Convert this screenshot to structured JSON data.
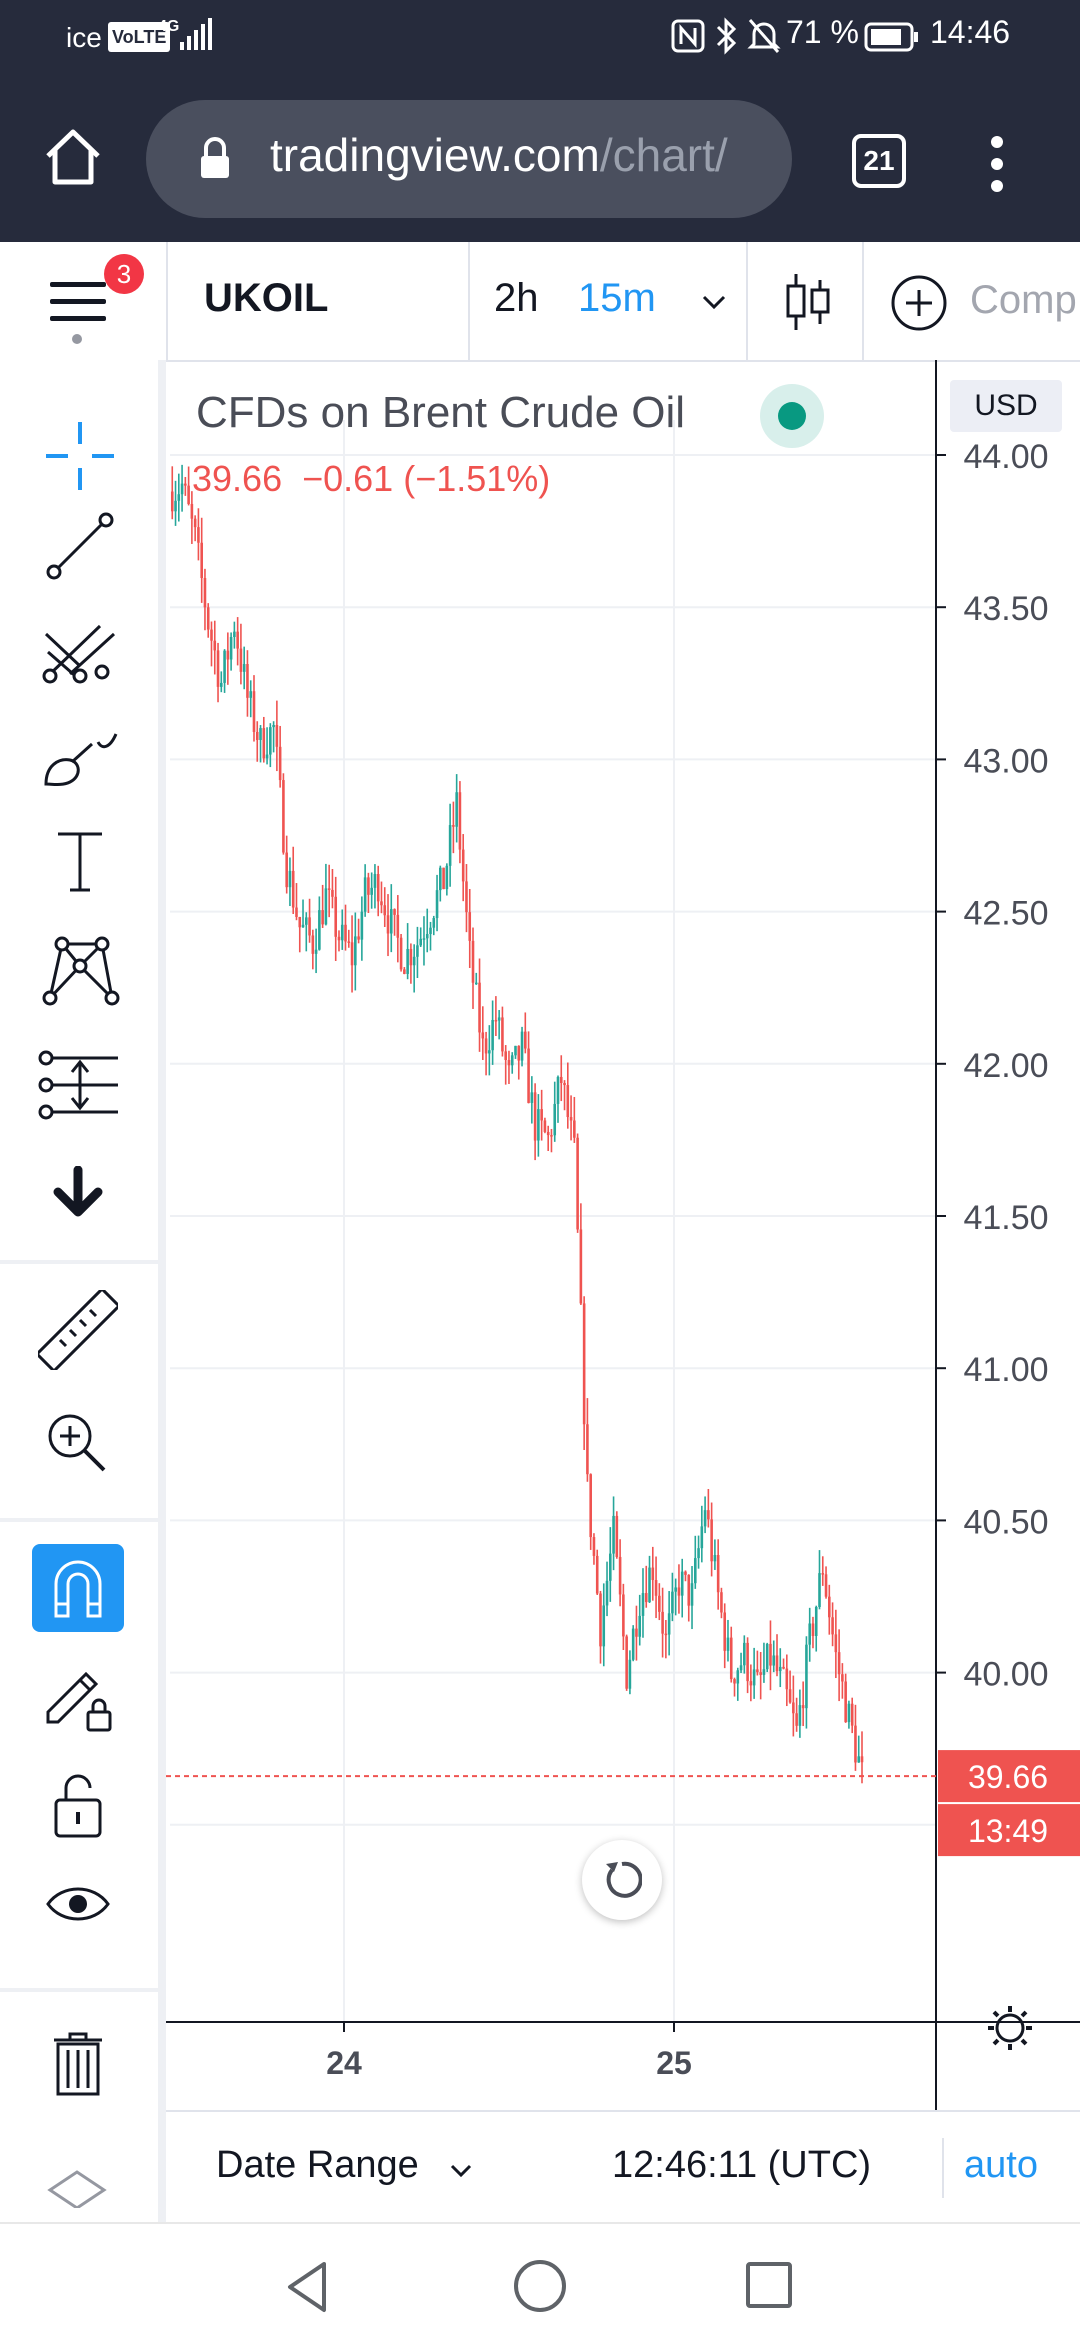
{
  "status_bar": {
    "carrier": "ice",
    "volte": "VoLTE",
    "network": "4G",
    "battery": "71 %",
    "time": "14:46"
  },
  "browser": {
    "url_host": "tradingview.com",
    "url_path": "/chart/",
    "tab_count": "21",
    "icons": [
      "home-icon",
      "lock-icon",
      "tabs-icon",
      "menu-dots-icon"
    ]
  },
  "toolbar": {
    "notification_count": "3",
    "symbol": "UKOIL",
    "range": "2h",
    "interval": "15m",
    "compare_label": "Comp"
  },
  "legend": {
    "title": "CFDs on Brent Crude Oil",
    "price": "39.66",
    "change": "−0.61 (−1.51%)",
    "status_color": "#089981"
  },
  "price_axis": {
    "currency": "USD",
    "ticks": [
      "44.00",
      "43.50",
      "43.00",
      "42.50",
      "42.00",
      "41.50",
      "41.00",
      "40.50",
      "40.00"
    ],
    "current_price_label": "39.66",
    "countdown_label": "13:49"
  },
  "time_axis": {
    "ticks": [
      "24",
      "25"
    ]
  },
  "bottom_bar": {
    "date_range_label": "Date Range",
    "clock": "12:46:11 (UTC)",
    "auto_label": "auto"
  },
  "colors": {
    "up": "#26a69a",
    "down": "#ef5350",
    "accent": "#2196f3",
    "dark": "#262b3c"
  },
  "chart_data": {
    "type": "candlestick",
    "symbol": "UKOIL",
    "title": "CFDs on Brent Crude Oil",
    "interval": "15m",
    "y_range": [
      39.5,
      44.0
    ],
    "last_price": 39.66,
    "x_ticks": [
      "24",
      "25"
    ],
    "close_path": [
      [
        0,
        43.88
      ],
      [
        4,
        43.9
      ],
      [
        8,
        43.72
      ],
      [
        12,
        43.45
      ],
      [
        16,
        43.25
      ],
      [
        20,
        43.45
      ],
      [
        24,
        43.2
      ],
      [
        28,
        43.05
      ],
      [
        32,
        43.1
      ],
      [
        36,
        42.65
      ],
      [
        40,
        42.45
      ],
      [
        44,
        42.4
      ],
      [
        48,
        42.55
      ],
      [
        52,
        42.42
      ],
      [
        56,
        42.35
      ],
      [
        60,
        42.55
      ],
      [
        64,
        42.6
      ],
      [
        68,
        42.45
      ],
      [
        72,
        42.35
      ],
      [
        76,
        42.4
      ],
      [
        80,
        42.5
      ],
      [
        84,
        42.6
      ],
      [
        88,
        42.85
      ],
      [
        92,
        42.35
      ],
      [
        96,
        42.05
      ],
      [
        100,
        42.15
      ],
      [
        104,
        41.95
      ],
      [
        108,
        42.05
      ],
      [
        112,
        41.8
      ],
      [
        116,
        41.75
      ],
      [
        120,
        41.95
      ],
      [
        124,
        41.7
      ],
      [
        128,
        40.6
      ],
      [
        132,
        40.15
      ],
      [
        136,
        40.45
      ],
      [
        140,
        40.0
      ],
      [
        144,
        40.25
      ],
      [
        148,
        40.35
      ],
      [
        152,
        40.1
      ],
      [
        156,
        40.3
      ],
      [
        160,
        40.25
      ],
      [
        164,
        40.55
      ],
      [
        168,
        40.25
      ],
      [
        172,
        40.0
      ],
      [
        176,
        40.05
      ],
      [
        180,
        39.95
      ],
      [
        184,
        40.05
      ],
      [
        188,
        39.95
      ],
      [
        192,
        39.8
      ],
      [
        196,
        40.1
      ],
      [
        200,
        40.35
      ],
      [
        204,
        40.05
      ],
      [
        208,
        39.85
      ],
      [
        212,
        39.66
      ]
    ]
  }
}
